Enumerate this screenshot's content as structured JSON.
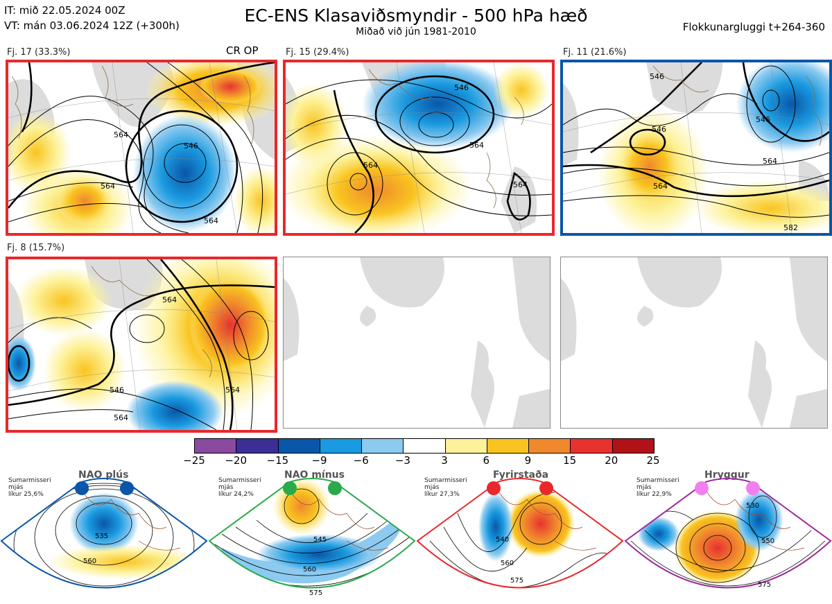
{
  "header": {
    "init_time": "IT: mið 22.05.2024 00Z",
    "valid_time": "VT: mán 03.06.2024 12Z  (+300h)",
    "title": "EC-ENS Klasaviðsmyndir - 500 hPa hæð",
    "subtitle": "Miðað við jún 1981-2010",
    "window": "Flokkunargluggi t+264-360"
  },
  "clusters": [
    {
      "label": "Fj. 17 (33.3%)",
      "extra": "CR OP",
      "border_color": "#e8282b",
      "contour_labels": [
        "546",
        "564",
        "564",
        "564"
      ]
    },
    {
      "label": "Fj. 15 (29.4%)",
      "extra": "",
      "border_color": "#e8282b",
      "contour_labels": [
        "546",
        "564",
        "564",
        "564"
      ]
    },
    {
      "label": "Fj. 11 (21.6%)",
      "extra": "",
      "border_color": "#0a56a8",
      "contour_labels": [
        "546",
        "546",
        "546",
        "564",
        "564",
        "582"
      ]
    },
    {
      "label": "Fj. 8 (15.7%)",
      "extra": "",
      "border_color": "#e8282b",
      "contour_labels": [
        "564",
        "546",
        "564",
        "564"
      ]
    }
  ],
  "colorbar": {
    "ticks": [
      "−25",
      "−20",
      "−15",
      "−9",
      "−6",
      "−3",
      "3",
      "6",
      "9",
      "15",
      "20",
      "25"
    ],
    "colors": [
      "#8a4aa0",
      "#3b2e96",
      "#0a56a8",
      "#1a9ae0",
      "#8ccaf0",
      "#ffffff",
      "#fdf29a",
      "#f9c420",
      "#f0882e",
      "#e8322e",
      "#b01218"
    ]
  },
  "regimes": [
    {
      "name": "NAO plús",
      "info": [
        "Sumarmisseri",
        "mjás",
        "líkur 25,6%"
      ],
      "color": "#0a56a8",
      "contour_labels": [
        "535",
        "560"
      ]
    },
    {
      "name": "NAO mínus",
      "info": [
        "Sumarmisseri",
        "mjás",
        "líkur 24,2%"
      ],
      "color": "#2aaa4a",
      "contour_labels": [
        "545",
        "560",
        "575"
      ]
    },
    {
      "name": "Fyrirstaða",
      "info": [
        "Sumarmisseri",
        "mjás",
        "líkur 27,3%"
      ],
      "color": "#e8282b",
      "contour_labels": [
        "540",
        "560",
        "575"
      ]
    },
    {
      "name": "Hryggur",
      "info": [
        "Sumarmisseri",
        "mjás",
        "líkur 22,9%"
      ],
      "color": "#9a2a9a",
      "dot_color": "#f080f0",
      "contour_labels": [
        "530",
        "550",
        "575"
      ]
    }
  ]
}
